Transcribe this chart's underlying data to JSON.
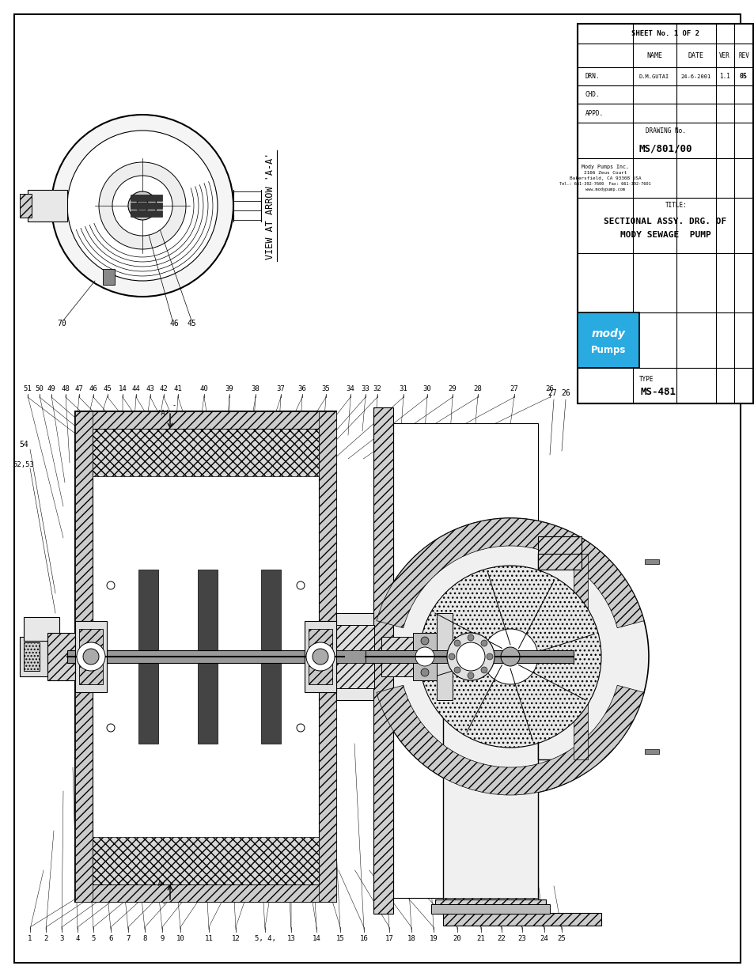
{
  "page_bg": "#ffffff",
  "tb": {
    "company_name": "Mody Pumps Inc.",
    "address_line1": "2166 Zeus Court",
    "address_line2": "Bakersfield, CA 93308 USA",
    "tel": "Tel.: 661-392-7600  Fax: 661-392-7601",
    "web": "www.modypump.com",
    "title_label": "TITLE:",
    "title_line1": "SECTIONAL ASSY. DRG. OF",
    "title_line2": "MODY SEWAGE  PUMP",
    "drn_name": "D.M.GUTAI",
    "drn_date": "24-6-2001",
    "drawing_no": "MS/801/00",
    "ver_value": "1.1",
    "rev_value": "05",
    "sheet_text": "SHEET No. 1 OF 2",
    "type_value": "MS-481"
  },
  "view_label": "VIEW AT ARROW 'A-A'",
  "bottom_labels": [
    "1",
    "2",
    "3",
    "4",
    "5",
    "6",
    "7",
    "8",
    "9",
    "10",
    "11",
    "12",
    "5, 4,",
    "13",
    "14",
    "15",
    "16",
    "17",
    "18",
    "19",
    "20",
    "21",
    "22",
    "23",
    "24",
    "25"
  ],
  "top_labels": [
    "51",
    "50",
    "49",
    "48",
    "47",
    "46",
    "45",
    "14",
    "44",
    "43",
    "42",
    "41",
    "40",
    "39",
    "38",
    "37",
    "36",
    "35",
    "34",
    "33",
    "32",
    "31",
    "30",
    "29",
    "28",
    "27",
    "26"
  ],
  "logo_bg": "#29abe2"
}
